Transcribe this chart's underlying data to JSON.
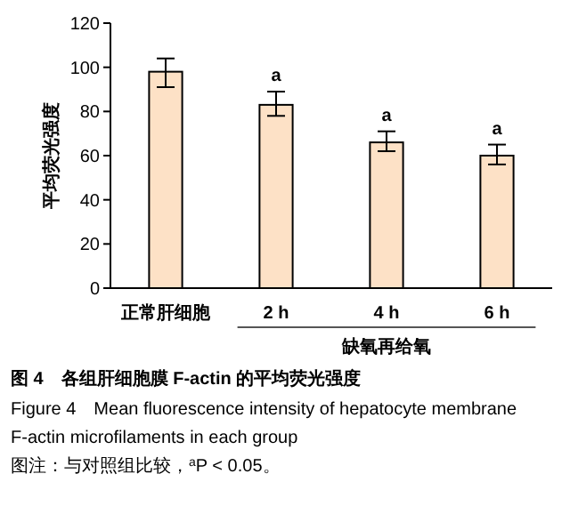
{
  "chart_data": {
    "type": "bar",
    "title": "图 4　各组肝细胞膜 F-actin 的平均荧光强度",
    "subtitle": "Figure 4　Mean fluorescence intensity of hepatocyte membrane F-actin microfilaments in each group",
    "ylabel": "平均荧光强度",
    "xlabel": "缺氧再给氧",
    "categories": [
      "正常肝细胞",
      "2 h",
      "4 h",
      "6 h"
    ],
    "values": [
      98,
      83,
      66,
      60
    ],
    "errors": [
      [
        91,
        104
      ],
      [
        78,
        89
      ],
      [
        62,
        71
      ],
      [
        56,
        65
      ]
    ],
    "value_labels": [
      null,
      "a",
      "a",
      "a"
    ],
    "color": "#fde1c6",
    "ylim": [
      0,
      120
    ],
    "yticks": [
      0,
      20,
      40,
      60,
      80,
      100,
      120
    ],
    "grid": false,
    "annotations": [
      "图注：与对照组比较，$^{a}$P < 0.05。"
    ]
  }
}
